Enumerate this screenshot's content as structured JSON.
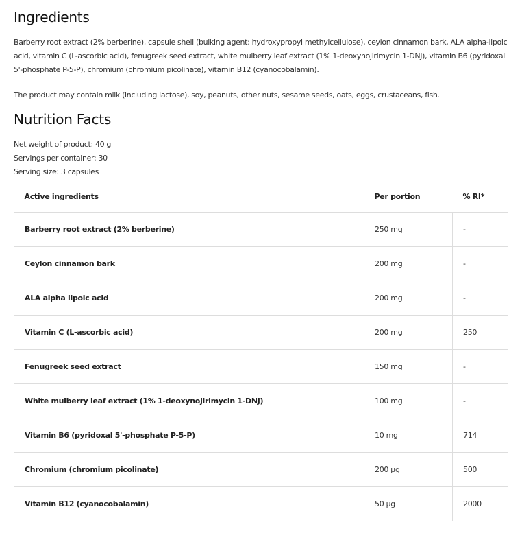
{
  "ingredients": {
    "title": "Ingredients",
    "text": "Barberry root extract (2% berberine), capsule shell (bulking agent: hydroxypropyl methylcellulose), ceylon cinnamon bark, ALA alpha-lipoic acid, vitamin C (L-ascorbic acid), fenugreek seed extract, white mulberry leaf extract (1% 1-deoxynojirimycin 1-DNJ), vitamin B6 (pyridoxal 5'-phosphate P-5-P), chromium (chromium picolinate), vitamin B12 (cyanocobalamin).",
    "allergens": "The product may contain milk (including lactose), soy, peanuts, other nuts, sesame seeds, oats, eggs, crustaceans, fish."
  },
  "nutrition": {
    "title": "Nutrition Facts",
    "net_weight": "Net weight of product: 40 g",
    "servings": "Servings per container: 30",
    "serving_size": "Serving size: 3 capsules",
    "headers": [
      "Active ingredients",
      "Per portion",
      "% RI*"
    ],
    "rows": [
      [
        "Barberry root extract (2% berberine)",
        "250 mg",
        "-"
      ],
      [
        "Ceylon cinnamon bark",
        "200 mg",
        "-"
      ],
      [
        "ALA alpha lipoic acid",
        "200 mg",
        "-"
      ],
      [
        "Vitamin C (L-ascorbic acid)",
        "200 mg",
        "250"
      ],
      [
        "Fenugreek seed extract",
        "150 mg",
        "-"
      ],
      [
        "White mulberry leaf extract (1% 1-deoxynojirimycin 1-DNJ)",
        "100 mg",
        "-"
      ],
      [
        "Vitamin B6 (pyridoxal 5'-phosphate P-5-P)",
        "10 mg",
        "714"
      ],
      [
        "Chromium (chromium picolinate)",
        "200 µg",
        "500"
      ],
      [
        "Vitamin B12 (cyanocobalamin)",
        "50 µg",
        "2000"
      ]
    ]
  }
}
